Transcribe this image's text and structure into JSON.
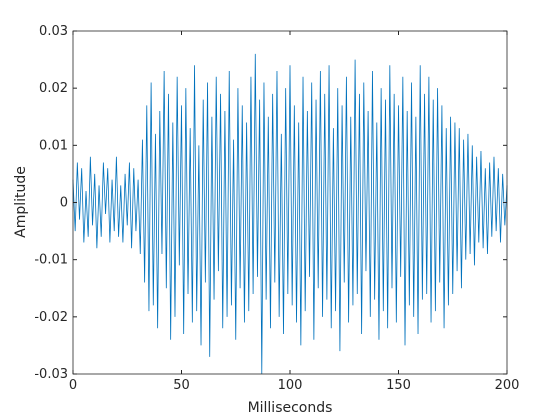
{
  "chart_data": {
    "type": "line",
    "x_label": "Milliseconds",
    "y_label": "Amplitude",
    "xlim": [
      0,
      200
    ],
    "xticks": [
      0,
      50,
      100,
      150,
      200
    ],
    "ylim": [
      -0.03,
      0.03
    ],
    "yticks": [
      -0.03,
      -0.02,
      -0.01,
      0,
      0.01,
      0.02,
      0.03
    ],
    "x": [
      0,
      1,
      2,
      3,
      4,
      5,
      6,
      7,
      8,
      9,
      10,
      11,
      12,
      13,
      14,
      15,
      16,
      17,
      18,
      19,
      20,
      21,
      22,
      23,
      24,
      25,
      26,
      27,
      28,
      29,
      30,
      31,
      32,
      33,
      34,
      35,
      36,
      37,
      38,
      39,
      40,
      41,
      42,
      43,
      44,
      45,
      46,
      47,
      48,
      49,
      50,
      51,
      52,
      53,
      54,
      55,
      56,
      57,
      58,
      59,
      60,
      61,
      62,
      63,
      64,
      65,
      66,
      67,
      68,
      69,
      70,
      71,
      72,
      73,
      74,
      75,
      76,
      77,
      78,
      79,
      80,
      81,
      82,
      83,
      84,
      85,
      86,
      87,
      88,
      89,
      90,
      91,
      92,
      93,
      94,
      95,
      96,
      97,
      98,
      99,
      100,
      101,
      102,
      103,
      104,
      105,
      106,
      107,
      108,
      109,
      110,
      111,
      112,
      113,
      114,
      115,
      116,
      117,
      118,
      119,
      120,
      121,
      122,
      123,
      124,
      125,
      126,
      127,
      128,
      129,
      130,
      131,
      132,
      133,
      134,
      135,
      136,
      137,
      138,
      139,
      140,
      141,
      142,
      143,
      144,
      145,
      146,
      147,
      148,
      149,
      150,
      151,
      152,
      153,
      154,
      155,
      156,
      157,
      158,
      159,
      160,
      161,
      162,
      163,
      164,
      165,
      166,
      167,
      168,
      169,
      170,
      171,
      172,
      173,
      174,
      175,
      176,
      177,
      178,
      179,
      180,
      181,
      182,
      183,
      184,
      185,
      186,
      187,
      188,
      189,
      190,
      191,
      192,
      193,
      194,
      195,
      196,
      197,
      198,
      199,
      200
    ],
    "series": [
      {
        "color": "#0072bd",
        "values": [
          0.004,
          -0.005,
          0.007,
          -0.003,
          0.006,
          -0.007,
          0.002,
          -0.006,
          0.008,
          -0.004,
          0.005,
          -0.008,
          0.003,
          -0.006,
          0.007,
          -0.002,
          0.006,
          -0.007,
          0.004,
          -0.005,
          0.008,
          -0.006,
          0.003,
          -0.007,
          0.005,
          -0.004,
          0.007,
          -0.008,
          0.006,
          -0.005,
          0.004,
          -0.009,
          0.011,
          -0.014,
          0.017,
          -0.019,
          0.021,
          -0.018,
          0.012,
          -0.022,
          0.016,
          -0.009,
          0.023,
          -0.015,
          0.019,
          -0.024,
          0.014,
          -0.02,
          0.022,
          -0.011,
          0.017,
          -0.023,
          0.02,
          -0.016,
          0.013,
          -0.021,
          0.024,
          -0.019,
          0.01,
          -0.025,
          0.018,
          -0.014,
          0.021,
          -0.027,
          0.015,
          -0.017,
          0.022,
          -0.012,
          0.019,
          -0.022,
          0.016,
          -0.02,
          0.023,
          -0.018,
          0.011,
          -0.024,
          0.02,
          -0.015,
          0.017,
          -0.021,
          0.014,
          -0.019,
          0.022,
          -0.016,
          0.026,
          -0.013,
          0.018,
          -0.03,
          0.021,
          -0.017,
          0.015,
          -0.022,
          0.019,
          -0.014,
          0.023,
          -0.02,
          0.012,
          -0.023,
          0.02,
          -0.016,
          0.024,
          -0.018,
          0.017,
          -0.021,
          0.014,
          -0.025,
          0.022,
          -0.019,
          0.016,
          -0.013,
          0.021,
          -0.024,
          0.018,
          -0.015,
          0.023,
          -0.02,
          0.019,
          -0.017,
          0.024,
          -0.022,
          0.013,
          -0.019,
          0.02,
          -0.026,
          0.017,
          -0.014,
          0.022,
          -0.021,
          0.015,
          -0.018,
          0.025,
          -0.016,
          0.019,
          -0.023,
          0.021,
          -0.012,
          0.016,
          -0.02,
          0.023,
          -0.017,
          0.014,
          -0.024,
          0.02,
          -0.019,
          0.018,
          -0.022,
          0.024,
          -0.015,
          0.019,
          -0.021,
          0.017,
          -0.013,
          0.022,
          -0.025,
          0.016,
          -0.018,
          0.021,
          -0.02,
          0.015,
          -0.023,
          0.024,
          -0.017,
          0.019,
          -0.016,
          0.022,
          -0.021,
          0.018,
          -0.019,
          0.02,
          -0.014,
          0.017,
          -0.022,
          0.013,
          -0.018,
          0.015,
          -0.016,
          0.014,
          -0.012,
          0.013,
          -0.015,
          0.011,
          -0.01,
          0.012,
          -0.009,
          0.01,
          -0.011,
          0.008,
          -0.007,
          0.009,
          -0.008,
          0.006,
          -0.009,
          0.007,
          -0.006,
          0.008,
          -0.005,
          0.006,
          -0.007,
          0.005,
          -0.004,
          0.003
        ]
      }
    ]
  }
}
